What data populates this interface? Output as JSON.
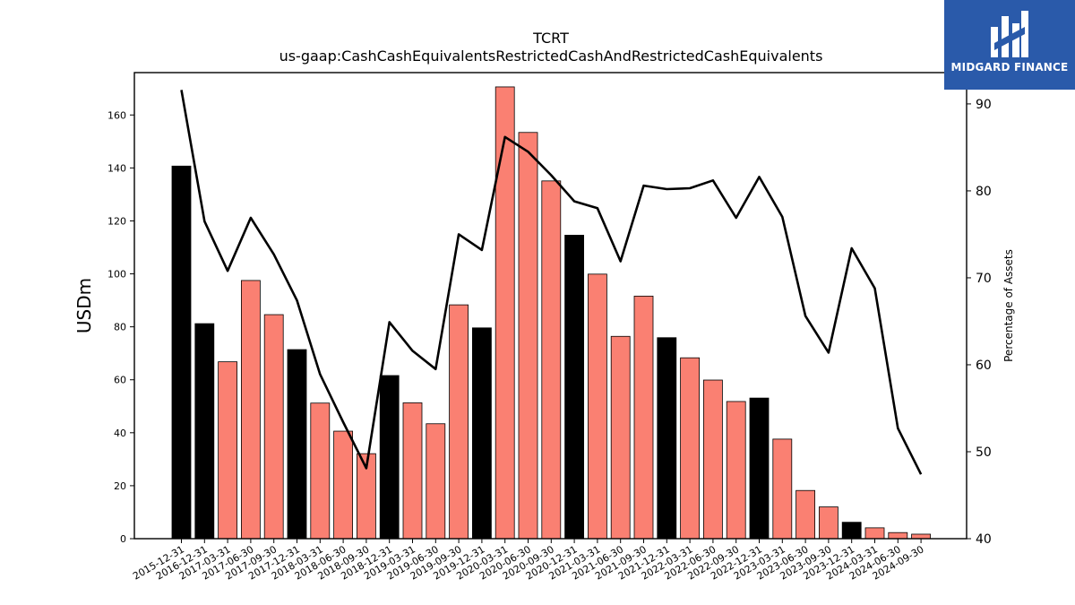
{
  "logo": {
    "text": "MIDGARD FINANCE"
  },
  "chart_data": {
    "type": "bar",
    "title": "TCRT",
    "subtitle": "us-gaap:CashCashEquivalentsRestrictedCashAndRestrictedCashEquivalents",
    "ylabel": "USDm",
    "y2label": "Percentage of Assets",
    "ylim": [
      0,
      176
    ],
    "y2lim": [
      40,
      93.6
    ],
    "yticks": [
      0,
      20,
      40,
      60,
      80,
      100,
      120,
      140,
      160
    ],
    "y2ticks": [
      40,
      50,
      60,
      70,
      80,
      90
    ],
    "grid": false,
    "categories": [
      "2015-12-31",
      "2016-12-31",
      "2017-03-31",
      "2017-06-30",
      "2017-09-30",
      "2017-12-31",
      "2018-03-31",
      "2018-06-30",
      "2018-09-30",
      "2018-12-31",
      "2019-03-31",
      "2019-06-30",
      "2019-09-30",
      "2019-12-31",
      "2020-03-31",
      "2020-06-30",
      "2020-09-30",
      "2020-12-31",
      "2021-03-31",
      "2021-06-30",
      "2021-09-30",
      "2021-12-31",
      "2022-03-31",
      "2022-06-30",
      "2022-09-30",
      "2022-12-31",
      "2023-03-31",
      "2023-06-30",
      "2023-09-30",
      "2023-12-31",
      "2024-03-31",
      "2024-06-30",
      "2024-09-30"
    ],
    "series": [
      {
        "type": "bar",
        "values": [
          140.7,
          81.2,
          66.8,
          97.5,
          84.6,
          71.4,
          51.2,
          40.6,
          32.1,
          61.6,
          51.3,
          43.4,
          88.3,
          79.6,
          170.6,
          153.4,
          135.1,
          114.6,
          99.9,
          76.4,
          91.6,
          75.9,
          68.3,
          59.9,
          51.8,
          53.1,
          37.6,
          18.2,
          12.0,
          6.2,
          4.1,
          2.3,
          1.7
        ],
        "colors": [
          "#000000",
          "#000000",
          "#fa8072",
          "#fa8072",
          "#fa8072",
          "#000000",
          "#fa8072",
          "#fa8072",
          "#fa8072",
          "#000000",
          "#fa8072",
          "#fa8072",
          "#fa8072",
          "#000000",
          "#fa8072",
          "#fa8072",
          "#fa8072",
          "#000000",
          "#fa8072",
          "#fa8072",
          "#fa8072",
          "#000000",
          "#fa8072",
          "#fa8072",
          "#fa8072",
          "#000000",
          "#fa8072",
          "#fa8072",
          "#fa8072",
          "#000000",
          "#fa8072",
          "#fa8072",
          "#fa8072"
        ]
      },
      {
        "type": "line",
        "axis": "right",
        "color": "#000000",
        "values": [
          91.6,
          76.5,
          70.8,
          76.9,
          72.7,
          67.4,
          58.9,
          53.4,
          48.1,
          64.9,
          61.6,
          59.5,
          75.0,
          73.2,
          86.2,
          84.5,
          81.8,
          78.8,
          78.0,
          71.9,
          80.6,
          80.2,
          80.3,
          81.2,
          76.9,
          81.6,
          77.0,
          65.6,
          61.4,
          73.4,
          68.8,
          52.7,
          47.4
        ]
      }
    ]
  }
}
